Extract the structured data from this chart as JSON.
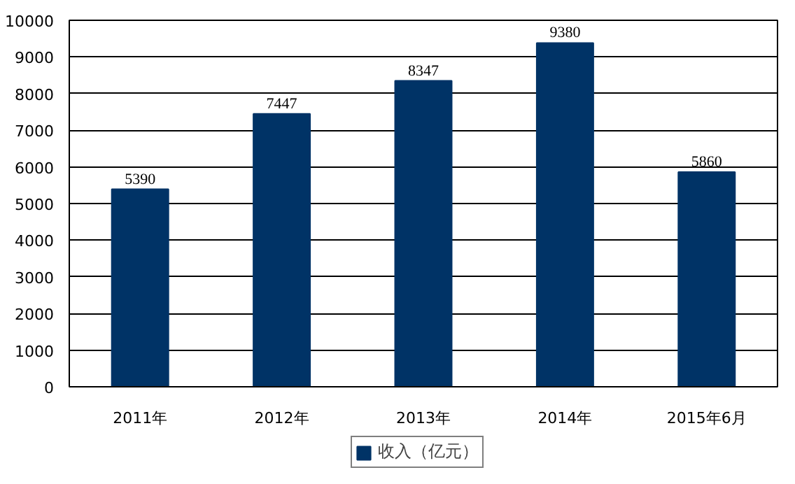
{
  "chart_data": {
    "type": "bar",
    "categories": [
      "2011年",
      "2012年",
      "2013年",
      "2014年",
      "2015年6月"
    ],
    "series": [
      {
        "name": "收入（亿元）",
        "color": "#003366",
        "values": [
          5390,
          7447,
          8347,
          9380,
          5860
        ]
      }
    ],
    "ylim": [
      0,
      10000
    ],
    "yticks": [
      0,
      1000,
      2000,
      3000,
      4000,
      5000,
      6000,
      7000,
      8000,
      9000,
      10000
    ],
    "grid": "y",
    "legend": "bottom",
    "data_labels": true
  }
}
